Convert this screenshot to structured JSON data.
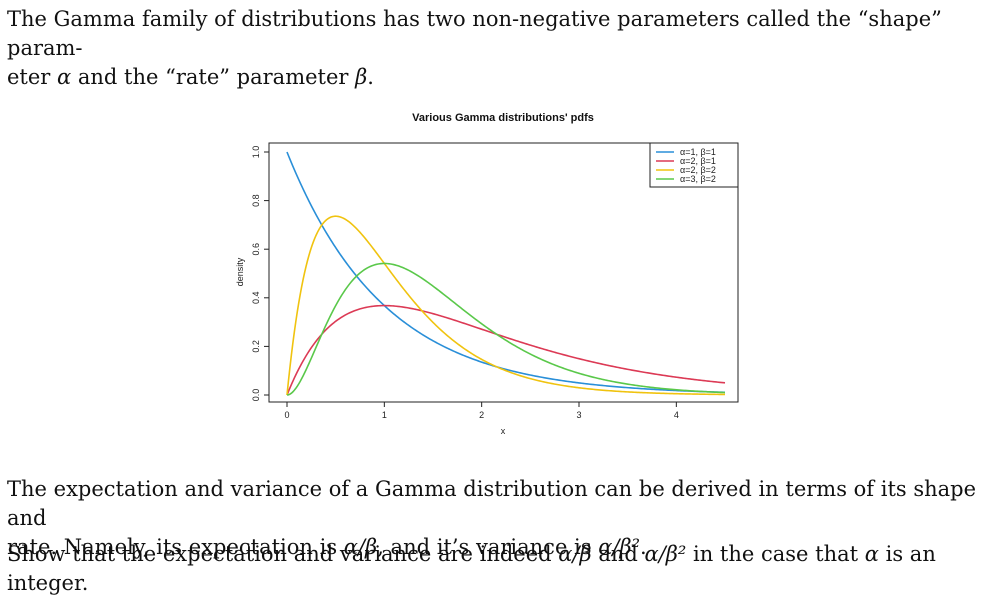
{
  "p1": {
    "line1": "The Gamma family of distributions has two non-negative parameters called the “shape” param-",
    "line2a": "eter ",
    "alpha": "α",
    "line2b": " and the “rate” parameter ",
    "beta": "β",
    "line2c": "."
  },
  "p2": {
    "line1": "The expectation and variance of a Gamma distribution can be derived in terms of its shape and",
    "line2a": "rate. Namely, its expectation is ",
    "expect": "α/β",
    "line2b": ", and it’s variance is ",
    "variance": "α/β²",
    "line2c": "."
  },
  "p3": {
    "a": "Show that the expectation and variance are indeed ",
    "m1": "α/β",
    "b": " and ",
    "m2": "α/β²",
    "c": " in the case that ",
    "m3": "α",
    "d": " is an integer."
  },
  "chart_data": {
    "type": "line",
    "title": "Various Gamma distributions' pdfs",
    "xlabel": "x",
    "ylabel": "density",
    "xlim": [
      0,
      4.5
    ],
    "ylim": [
      0,
      1.0
    ],
    "xticks": [
      0,
      1,
      2,
      3,
      4
    ],
    "yticks": [
      0.0,
      0.2,
      0.4,
      0.6,
      0.8,
      1.0
    ],
    "xtick_labels": [
      "0",
      "1",
      "2",
      "3",
      "4"
    ],
    "ytick_labels": [
      "0.0",
      "0.2",
      "0.4",
      "0.6",
      "0.8",
      "1.0"
    ],
    "legend_position": "top-right",
    "grid": false,
    "series": [
      {
        "name": "α=1, β=1",
        "shape": 1,
        "rate": 1,
        "color": "#2a8fd8"
      },
      {
        "name": "α=2, β=1",
        "shape": 2,
        "rate": 1,
        "color": "#dc3a55"
      },
      {
        "name": "α=2, β=2",
        "shape": 2,
        "rate": 2,
        "color": "#f0c30f"
      },
      {
        "name": "α=3, β=2",
        "shape": 3,
        "rate": 2,
        "color": "#5ac84a"
      }
    ]
  }
}
